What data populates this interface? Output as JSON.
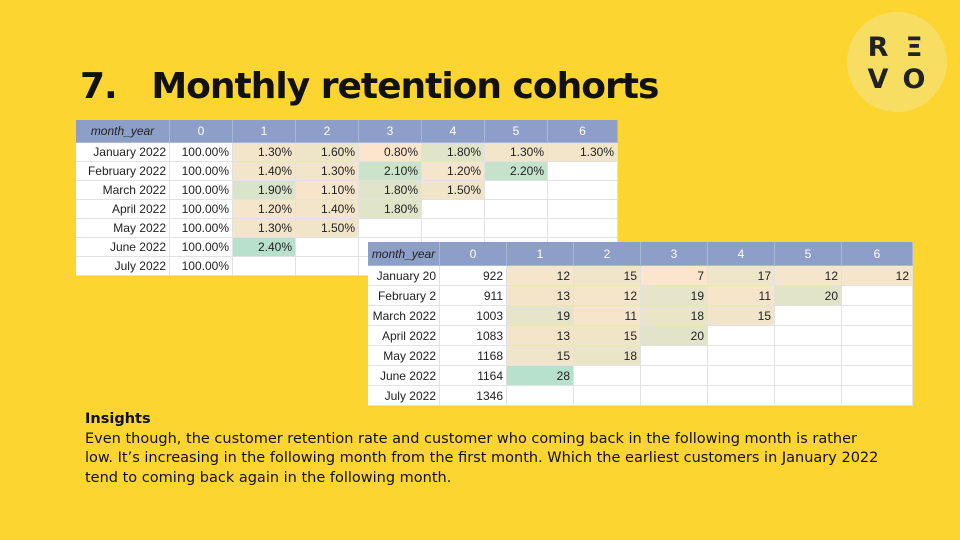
{
  "header": {
    "title": "7.   Monthly retention cohorts"
  },
  "logo": {
    "letters": [
      "R",
      "Ξ",
      "V",
      "O"
    ]
  },
  "rate_table": {
    "columns": [
      "month_year",
      "0",
      "1",
      "2",
      "3",
      "4",
      "5",
      "6"
    ],
    "rows": [
      [
        "January 2022",
        "100.00%",
        "1.30%",
        "1.60%",
        "0.80%",
        "1.80%",
        "1.30%",
        "1.30%"
      ],
      [
        "February 2022",
        "100.00%",
        "1.40%",
        "1.30%",
        "2.10%",
        "1.20%",
        "2.20%"
      ],
      [
        "March 2022",
        "100.00%",
        "1.90%",
        "1.10%",
        "1.80%",
        "1.50%"
      ],
      [
        "April 2022",
        "100.00%",
        "1.20%",
        "1.40%",
        "1.80%"
      ],
      [
        "May 2022",
        "100.00%",
        "1.30%",
        "1.50%"
      ],
      [
        "June 2022",
        "100.00%",
        "2.40%"
      ],
      [
        "July 2022",
        "100.00%"
      ]
    ]
  },
  "count_table": {
    "columns": [
      "month_year",
      "0",
      "1",
      "2",
      "3",
      "4",
      "5",
      "6"
    ],
    "rows": [
      [
        "January 20",
        "922",
        "12",
        "15",
        "7",
        "17",
        "12",
        "12"
      ],
      [
        "February 2",
        "911",
        "13",
        "12",
        "19",
        "11",
        "20"
      ],
      [
        "March 2022",
        "1003",
        "19",
        "11",
        "18",
        "15"
      ],
      [
        "April 2022",
        "1083",
        "13",
        "15",
        "20"
      ],
      [
        "May 2022",
        "1168",
        "15",
        "18"
      ],
      [
        "June 2022",
        "1164",
        "28"
      ],
      [
        "July 2022",
        "1346"
      ]
    ]
  },
  "insights": {
    "heading": "Insights",
    "text": "Even though, the customer retention rate and customer who coming back in the following month is rather low. It’s increasing in the following month from the first month. Which the earliest customers in January 2022 tend to coming back again in the following month."
  }
}
